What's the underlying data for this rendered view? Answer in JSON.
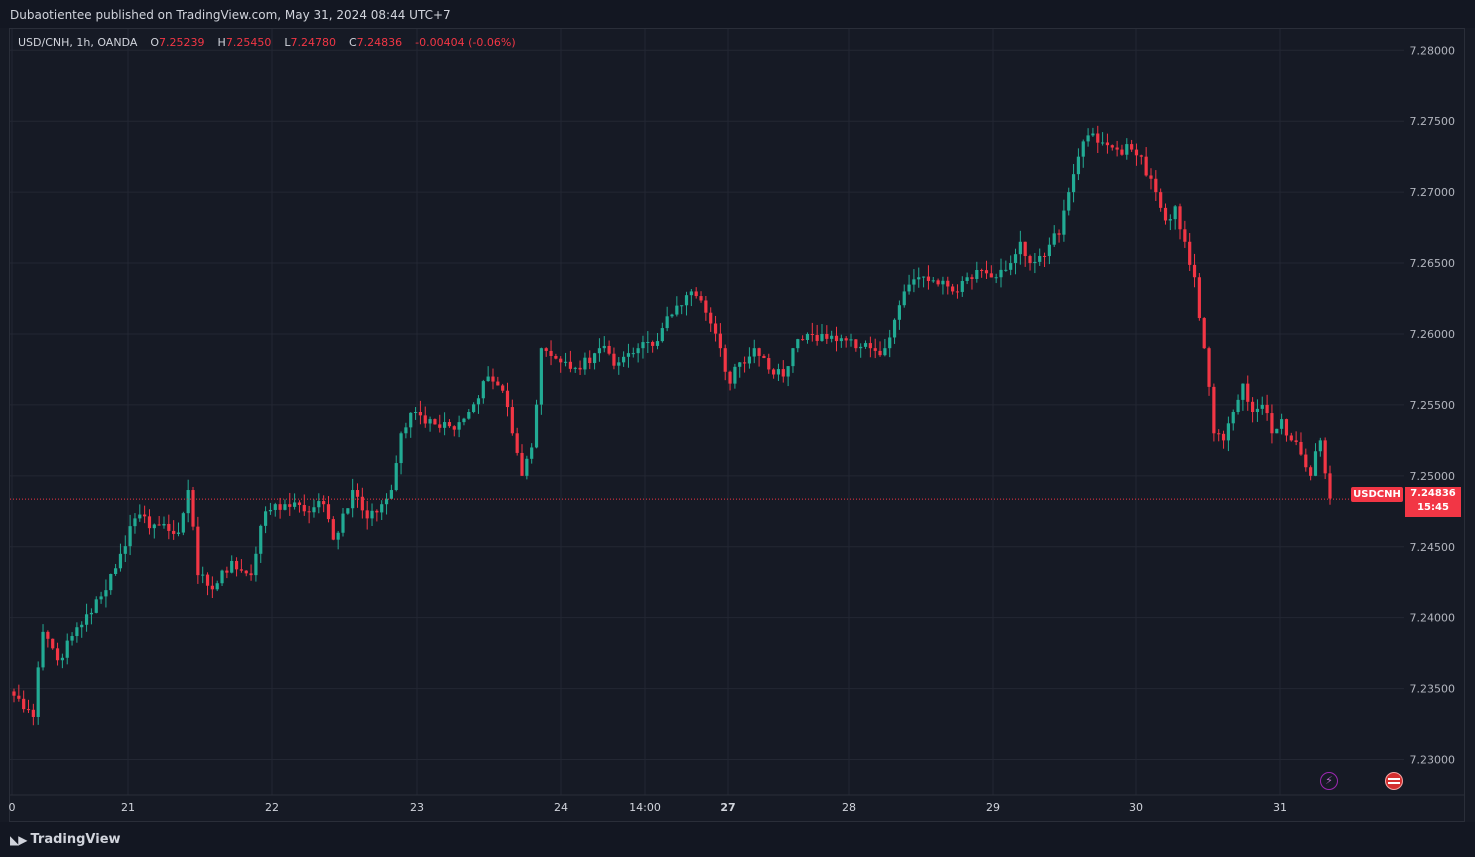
{
  "header": {
    "publisher": "Dubaotientee published on TradingView.com, May 31, 2024 08:44 UTC+7"
  },
  "legend": {
    "symbol": "USD/CNH, 1h, OANDA",
    "open_label": "O",
    "open": "7.25239",
    "high_label": "H",
    "high": "7.25450",
    "low_label": "L",
    "low": "7.24780",
    "close_label": "C",
    "close": "7.24836",
    "change": "-0.00404 (-0.06%)"
  },
  "price_tags": {
    "symbol": "USDCNH",
    "last": "7.24836",
    "countdown": "15:45"
  },
  "icons": {
    "event": "lightning-icon",
    "country": "us-flag-icon"
  },
  "footer": {
    "brand": "TradingView"
  },
  "colors": {
    "up": "#22ab94",
    "down": "#f23645",
    "grid": "#232733",
    "bg": "#161a25"
  },
  "chart_data": {
    "type": "candlestick",
    "title": "USD/CNH, 1h, OANDA",
    "y_range": [
      7.2275,
      7.2815
    ],
    "y_ticks": [
      "7.28000",
      "7.27500",
      "7.27000",
      "7.26500",
      "7.26000",
      "7.25500",
      "7.25000",
      "7.24500",
      "7.24000",
      "7.23500",
      "7.23000"
    ],
    "x_ticks": [
      {
        "label": "0",
        "bold": false
      },
      {
        "label": "21",
        "bold": false
      },
      {
        "label": "22",
        "bold": false
      },
      {
        "label": "23",
        "bold": false
      },
      {
        "label": "24",
        "bold": false
      },
      {
        "label": "14:00",
        "bold": false
      },
      {
        "label": "27",
        "bold": true
      },
      {
        "label": "28",
        "bold": false
      },
      {
        "label": "29",
        "bold": false
      },
      {
        "label": "30",
        "bold": false
      },
      {
        "label": "31",
        "bold": false
      }
    ],
    "anchors": [
      [
        0,
        7.2345
      ],
      [
        4,
        7.233
      ],
      [
        6,
        7.239
      ],
      [
        9,
        7.237
      ],
      [
        14,
        7.2395
      ],
      [
        18,
        7.2415
      ],
      [
        22,
        7.2445
      ],
      [
        25,
        7.247
      ],
      [
        30,
        7.2465
      ],
      [
        34,
        7.246
      ],
      [
        36,
        7.249
      ],
      [
        38,
        7.243
      ],
      [
        41,
        7.242
      ],
      [
        45,
        7.244
      ],
      [
        49,
        7.243
      ],
      [
        52,
        7.2475
      ],
      [
        56,
        7.248
      ],
      [
        60,
        7.2475
      ],
      [
        64,
        7.248
      ],
      [
        66,
        7.2455
      ],
      [
        70,
        7.249
      ],
      [
        73,
        7.247
      ],
      [
        76,
        7.248
      ],
      [
        78,
        7.249
      ],
      [
        80,
        7.253
      ],
      [
        83,
        7.2545
      ],
      [
        86,
        7.254
      ],
      [
        90,
        7.2535
      ],
      [
        94,
        7.2545
      ],
      [
        98,
        7.257
      ],
      [
        101,
        7.256
      ],
      [
        103,
        7.253
      ],
      [
        105,
        7.25
      ],
      [
        107,
        7.252
      ],
      [
        109,
        7.259
      ],
      [
        113,
        7.258
      ],
      [
        117,
        7.2575
      ],
      [
        121,
        7.259
      ],
      [
        125,
        7.258
      ],
      [
        129,
        7.259
      ],
      [
        133,
        7.2595
      ],
      [
        137,
        7.262
      ],
      [
        140,
        7.263
      ],
      [
        143,
        7.2615
      ],
      [
        146,
        7.259
      ],
      [
        148,
        7.2565
      ],
      [
        150,
        7.258
      ],
      [
        153,
        7.259
      ],
      [
        156,
        7.2575
      ],
      [
        159,
        7.257
      ],
      [
        161,
        7.259
      ],
      [
        164,
        7.26
      ],
      [
        167,
        7.26
      ],
      [
        170,
        7.2595
      ],
      [
        174,
        7.259
      ],
      [
        177,
        7.259
      ],
      [
        180,
        7.259
      ],
      [
        182,
        7.261
      ],
      [
        184,
        7.263
      ],
      [
        187,
        7.264
      ],
      [
        191,
        7.2635
      ],
      [
        194,
        7.263
      ],
      [
        197,
        7.264
      ],
      [
        200,
        7.2645
      ],
      [
        203,
        7.264
      ],
      [
        206,
        7.265
      ],
      [
        208,
        7.2665
      ],
      [
        210,
        7.265
      ],
      [
        212,
        7.2655
      ],
      [
        216,
        7.267
      ],
      [
        218,
        7.27
      ],
      [
        220,
        7.2725
      ],
      [
        222,
        7.274
      ],
      [
        225,
        7.2735
      ],
      [
        228,
        7.273
      ],
      [
        231,
        7.273
      ],
      [
        233,
        7.2725
      ],
      [
        236,
        7.27
      ],
      [
        238,
        7.268
      ],
      [
        240,
        7.269
      ],
      [
        242,
        7.2665
      ],
      [
        244,
        7.264
      ],
      [
        246,
        7.259
      ],
      [
        248,
        7.253
      ],
      [
        250,
        7.2525
      ],
      [
        252,
        7.2545
      ],
      [
        254,
        7.2565
      ],
      [
        256,
        7.2545
      ],
      [
        258,
        7.255
      ],
      [
        260,
        7.253
      ],
      [
        262,
        7.254
      ],
      [
        264,
        7.2525
      ],
      [
        266,
        7.2515
      ],
      [
        268,
        7.25
      ],
      [
        270,
        7.2525
      ],
      [
        272,
        7.2484
      ]
    ],
    "last_price": 7.24836
  }
}
